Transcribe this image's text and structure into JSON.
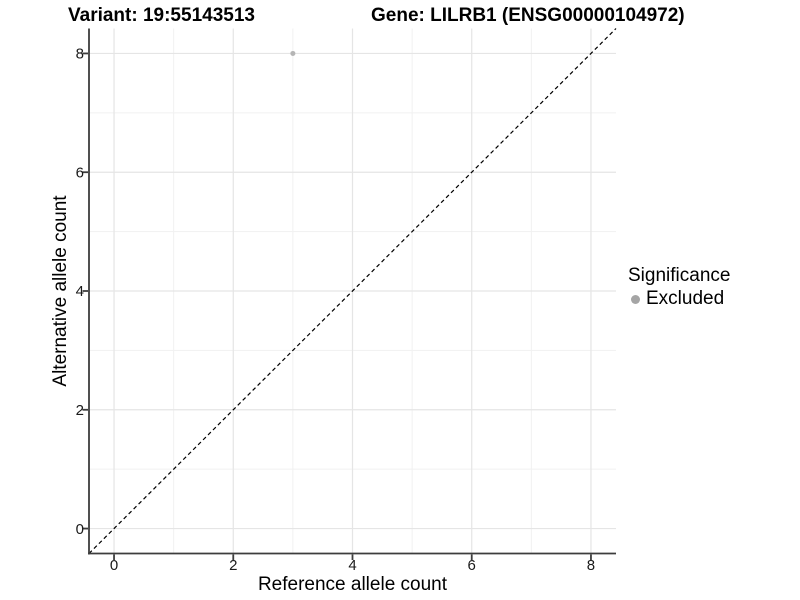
{
  "chart_data": {
    "type": "scatter",
    "titles": {
      "left": "Variant: 19:55143513",
      "right": "Gene: LILRB1 (ENSG00000104972)"
    },
    "xlabel": "Reference allele count",
    "ylabel": "Alternative allele count",
    "xlim": [
      -0.42,
      8.42
    ],
    "ylim": [
      -0.42,
      8.42
    ],
    "xticks": [
      0,
      2,
      4,
      6,
      8
    ],
    "yticks": [
      0,
      2,
      4,
      6,
      8
    ],
    "xminor": [
      1,
      3,
      5,
      7
    ],
    "yminor": [
      1,
      3,
      5,
      7
    ],
    "grid": "major+minor",
    "points": [
      {
        "x": 3,
        "y": 8,
        "series": "Excluded"
      }
    ],
    "reference_line": {
      "slope": 1,
      "intercept": 0,
      "style": "dashed",
      "color": "#000000"
    },
    "legend": {
      "title": "Significance",
      "position": "right",
      "entries": [
        {
          "label": "Excluded",
          "color": "#a5a5a5",
          "marker": "circle"
        }
      ]
    },
    "colors": {
      "background": "#ffffff",
      "point": "#b5b5b5",
      "grid_major": "#e5e5e5",
      "grid_minor": "#f1f1f1",
      "axis_line": "#3d3d3d",
      "tick_text": "#1a1a1a",
      "text": "#000000"
    }
  }
}
